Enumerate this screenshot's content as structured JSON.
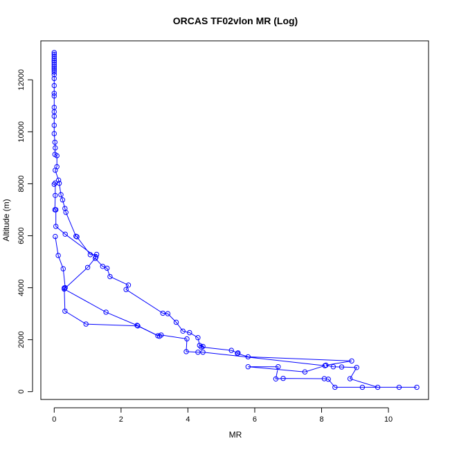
{
  "chart_data": {
    "type": "line",
    "title": "ORCAS TF02vlon MR (Log)",
    "xlabel": "MR",
    "ylabel": "Altitude (m)",
    "xlim": [
      -0.4,
      11.2
    ],
    "ylim": [
      -300,
      13500
    ],
    "xticks": [
      0,
      2,
      4,
      6,
      8,
      10
    ],
    "yticks": [
      0,
      2000,
      4000,
      6000,
      8000,
      10000,
      12000
    ],
    "marker": "open-circle",
    "color": "#0000ff",
    "grid": false,
    "legend": "none",
    "series": [
      {
        "points": [
          [
            0.0,
            13050
          ],
          [
            0.0,
            12980
          ],
          [
            0.0,
            12900
          ],
          [
            0.0,
            12820
          ],
          [
            0.0,
            12750
          ],
          [
            0.0,
            12680
          ],
          [
            0.0,
            12600
          ],
          [
            0.0,
            12520
          ],
          [
            0.0,
            12450
          ],
          [
            0.0,
            12380
          ],
          [
            0.0,
            12300
          ],
          [
            0.0,
            12200
          ],
          [
            0.0,
            12050
          ],
          [
            0.0,
            11780
          ],
          [
            0.0,
            11480
          ],
          [
            0.0,
            11380
          ],
          [
            0.0,
            10940
          ],
          [
            0.0,
            10770
          ],
          [
            0.0,
            10600
          ],
          [
            0.0,
            10250
          ],
          [
            0.0,
            9930
          ],
          [
            0.02,
            9600
          ],
          [
            0.03,
            9380
          ],
          [
            0.02,
            9130
          ],
          [
            0.08,
            9080
          ],
          [
            0.08,
            8660
          ],
          [
            0.03,
            8520
          ],
          [
            0.13,
            8140
          ],
          [
            0.15,
            8020
          ],
          [
            0.2,
            7580
          ],
          [
            0.25,
            7380
          ],
          [
            0.32,
            7050
          ],
          [
            0.35,
            6900
          ],
          [
            0.65,
            5980
          ],
          [
            0.68,
            5960
          ],
          [
            1.08,
            5270
          ],
          [
            1.27,
            5280
          ],
          [
            1.23,
            5130
          ],
          [
            1.45,
            4820
          ],
          [
            1.58,
            4750
          ],
          [
            1.67,
            4430
          ],
          [
            2.22,
            4100
          ],
          [
            2.15,
            3930
          ],
          [
            3.25,
            3020
          ],
          [
            3.4,
            3000
          ],
          [
            3.65,
            2670
          ],
          [
            3.85,
            2330
          ],
          [
            4.05,
            2270
          ],
          [
            4.3,
            2080
          ],
          [
            4.35,
            1780
          ],
          [
            4.45,
            1740
          ],
          [
            4.4,
            1720
          ],
          [
            5.3,
            1590
          ],
          [
            5.5,
            1490
          ],
          [
            5.48,
            1470
          ],
          [
            5.8,
            1340
          ],
          [
            8.9,
            1180
          ],
          [
            8.13,
            1020
          ],
          [
            8.35,
            960
          ],
          [
            8.6,
            950
          ],
          [
            9.05,
            930
          ],
          [
            8.85,
            500
          ],
          [
            9.68,
            170
          ],
          [
            9.22,
            170
          ],
          [
            10.85,
            170
          ],
          [
            10.32,
            170
          ],
          [
            8.4,
            170
          ],
          [
            8.2,
            480
          ],
          [
            8.08,
            500
          ],
          [
            6.85,
            510
          ],
          [
            6.63,
            490
          ],
          [
            6.7,
            960
          ],
          [
            5.8,
            960
          ],
          [
            7.5,
            760
          ],
          [
            8.1,
            1000
          ],
          [
            4.45,
            1520
          ],
          [
            4.3,
            1520
          ],
          [
            3.95,
            1540
          ],
          [
            3.97,
            2030
          ],
          [
            3.2,
            2180
          ],
          [
            3.1,
            2150
          ],
          [
            2.48,
            2550
          ],
          [
            1.55,
            3060
          ],
          [
            0.3,
            3950
          ],
          [
            1.0,
            4780
          ],
          [
            1.25,
            5180
          ],
          [
            0.33,
            6060
          ],
          [
            0.05,
            6360
          ],
          [
            0.05,
            7000
          ],
          [
            0.02,
            7000
          ],
          [
            0.03,
            7550
          ],
          [
            0.03,
            8030
          ],
          [
            0.0,
            7980
          ]
        ]
      },
      {
        "points": [
          [
            0.03,
            5970
          ],
          [
            0.12,
            5240
          ],
          [
            0.27,
            4730
          ],
          [
            0.33,
            4000
          ],
          [
            0.3,
            3990
          ],
          [
            0.32,
            3100
          ],
          [
            0.95,
            2600
          ],
          [
            2.5,
            2530
          ],
          [
            3.15,
            2130
          ]
        ]
      }
    ]
  }
}
